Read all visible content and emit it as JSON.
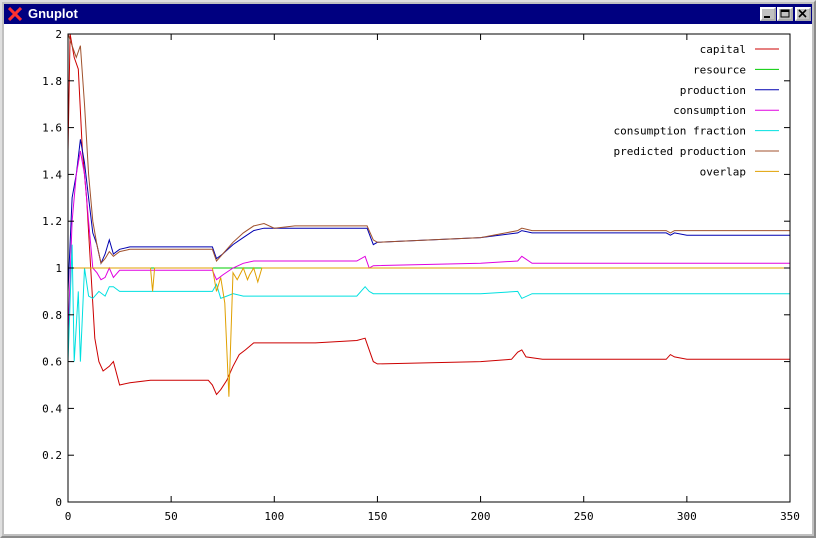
{
  "window": {
    "title": "Gnuplot",
    "icon": "x-logo-icon"
  },
  "colors": {
    "titlebar": "#000080",
    "plot_bg": "#ffffff",
    "axis": "#000000"
  },
  "chart_data": {
    "type": "line",
    "title": "",
    "xlabel": "",
    "ylabel": "",
    "xlim": [
      0,
      350
    ],
    "ylim": [
      0,
      2
    ],
    "xticks": [
      "0",
      "50",
      "100",
      "150",
      "200",
      "250",
      "300",
      "350"
    ],
    "yticks": [
      "0",
      "0.2",
      "0.4",
      "0.6",
      "0.8",
      "1",
      "1.2",
      "1.4",
      "1.6",
      "1.8",
      "2"
    ],
    "grid": false,
    "legend_position": "top-right",
    "series": [
      {
        "name": "capital",
        "color": "#cc0000",
        "points": [
          [
            0,
            1.5
          ],
          [
            1,
            2.0
          ],
          [
            3,
            1.9
          ],
          [
            5,
            1.85
          ],
          [
            7,
            1.5
          ],
          [
            9,
            1.3
          ],
          [
            11,
            1.0
          ],
          [
            13,
            0.7
          ],
          [
            15,
            0.6
          ],
          [
            17,
            0.56
          ],
          [
            20,
            0.58
          ],
          [
            22,
            0.6
          ],
          [
            25,
            0.5
          ],
          [
            30,
            0.51
          ],
          [
            40,
            0.52
          ],
          [
            55,
            0.52
          ],
          [
            68,
            0.52
          ],
          [
            70,
            0.5
          ],
          [
            72,
            0.46
          ],
          [
            74,
            0.48
          ],
          [
            77,
            0.52
          ],
          [
            80,
            0.58
          ],
          [
            83,
            0.63
          ],
          [
            86,
            0.65
          ],
          [
            90,
            0.68
          ],
          [
            100,
            0.68
          ],
          [
            120,
            0.68
          ],
          [
            140,
            0.69
          ],
          [
            144,
            0.7
          ],
          [
            146,
            0.65
          ],
          [
            148,
            0.6
          ],
          [
            150,
            0.59
          ],
          [
            200,
            0.6
          ],
          [
            215,
            0.61
          ],
          [
            218,
            0.64
          ],
          [
            220,
            0.65
          ],
          [
            222,
            0.62
          ],
          [
            230,
            0.61
          ],
          [
            290,
            0.61
          ],
          [
            292,
            0.63
          ],
          [
            294,
            0.62
          ],
          [
            300,
            0.61
          ],
          [
            350,
            0.61
          ]
        ]
      },
      {
        "name": "resource",
        "color": "#00cc00",
        "points": [
          [
            0,
            1.0
          ],
          [
            350,
            1.0
          ]
        ]
      },
      {
        "name": "production",
        "color": "#0000b0",
        "points": [
          [
            0,
            0.9
          ],
          [
            2,
            1.3
          ],
          [
            4,
            1.4
          ],
          [
            6,
            1.55
          ],
          [
            8,
            1.45
          ],
          [
            10,
            1.3
          ],
          [
            12,
            1.15
          ],
          [
            14,
            1.1
          ],
          [
            16,
            1.02
          ],
          [
            18,
            1.06
          ],
          [
            20,
            1.12
          ],
          [
            22,
            1.06
          ],
          [
            25,
            1.08
          ],
          [
            30,
            1.09
          ],
          [
            50,
            1.09
          ],
          [
            70,
            1.09
          ],
          [
            72,
            1.04
          ],
          [
            75,
            1.06
          ],
          [
            80,
            1.1
          ],
          [
            85,
            1.13
          ],
          [
            90,
            1.16
          ],
          [
            95,
            1.17
          ],
          [
            100,
            1.17
          ],
          [
            140,
            1.17
          ],
          [
            145,
            1.17
          ],
          [
            148,
            1.1
          ],
          [
            150,
            1.11
          ],
          [
            200,
            1.13
          ],
          [
            218,
            1.15
          ],
          [
            220,
            1.16
          ],
          [
            225,
            1.15
          ],
          [
            290,
            1.15
          ],
          [
            292,
            1.14
          ],
          [
            294,
            1.15
          ],
          [
            300,
            1.14
          ],
          [
            350,
            1.14
          ]
        ]
      },
      {
        "name": "consumption",
        "color": "#e000e0",
        "points": [
          [
            0,
            0.7
          ],
          [
            2,
            1.2
          ],
          [
            4,
            1.4
          ],
          [
            6,
            1.5
          ],
          [
            8,
            1.4
          ],
          [
            10,
            1.2
          ],
          [
            12,
            1.0
          ],
          [
            14,
            0.98
          ],
          [
            16,
            0.95
          ],
          [
            18,
            0.96
          ],
          [
            20,
            1.0
          ],
          [
            22,
            0.96
          ],
          [
            25,
            0.99
          ],
          [
            30,
            0.99
          ],
          [
            50,
            0.99
          ],
          [
            70,
            0.99
          ],
          [
            72,
            0.95
          ],
          [
            75,
            0.97
          ],
          [
            80,
            1.0
          ],
          [
            85,
            1.02
          ],
          [
            90,
            1.03
          ],
          [
            100,
            1.03
          ],
          [
            140,
            1.03
          ],
          [
            144,
            1.05
          ],
          [
            146,
            1.0
          ],
          [
            148,
            1.01
          ],
          [
            200,
            1.02
          ],
          [
            218,
            1.03
          ],
          [
            220,
            1.05
          ],
          [
            225,
            1.02
          ],
          [
            350,
            1.02
          ]
        ]
      },
      {
        "name": "consumption fraction",
        "color": "#00e0e0",
        "points": [
          [
            0,
            0.6
          ],
          [
            2,
            1.1
          ],
          [
            3,
            0.6
          ],
          [
            5,
            0.9
          ],
          [
            6,
            0.6
          ],
          [
            8,
            1.0
          ],
          [
            10,
            0.88
          ],
          [
            12,
            0.87
          ],
          [
            15,
            0.9
          ],
          [
            18,
            0.88
          ],
          [
            20,
            0.92
          ],
          [
            22,
            0.92
          ],
          [
            25,
            0.9
          ],
          [
            50,
            0.9
          ],
          [
            70,
            0.9
          ],
          [
            72,
            0.93
          ],
          [
            74,
            0.87
          ],
          [
            77,
            0.88
          ],
          [
            80,
            0.89
          ],
          [
            85,
            0.88
          ],
          [
            140,
            0.88
          ],
          [
            144,
            0.92
          ],
          [
            146,
            0.9
          ],
          [
            148,
            0.89
          ],
          [
            200,
            0.89
          ],
          [
            218,
            0.9
          ],
          [
            220,
            0.87
          ],
          [
            225,
            0.89
          ],
          [
            350,
            0.89
          ]
        ]
      },
      {
        "name": "predicted production",
        "color": "#a0522d",
        "points": [
          [
            0,
            2.0
          ],
          [
            2,
            1.95
          ],
          [
            4,
            1.9
          ],
          [
            6,
            1.95
          ],
          [
            8,
            1.7
          ],
          [
            10,
            1.4
          ],
          [
            12,
            1.2
          ],
          [
            14,
            1.1
          ],
          [
            16,
            1.02
          ],
          [
            18,
            1.04
          ],
          [
            20,
            1.07
          ],
          [
            22,
            1.05
          ],
          [
            25,
            1.07
          ],
          [
            30,
            1.08
          ],
          [
            50,
            1.08
          ],
          [
            70,
            1.08
          ],
          [
            72,
            1.03
          ],
          [
            75,
            1.06
          ],
          [
            80,
            1.11
          ],
          [
            85,
            1.15
          ],
          [
            90,
            1.18
          ],
          [
            95,
            1.19
          ],
          [
            100,
            1.17
          ],
          [
            110,
            1.18
          ],
          [
            140,
            1.18
          ],
          [
            145,
            1.18
          ],
          [
            148,
            1.12
          ],
          [
            150,
            1.11
          ],
          [
            200,
            1.13
          ],
          [
            218,
            1.16
          ],
          [
            220,
            1.17
          ],
          [
            225,
            1.16
          ],
          [
            290,
            1.16
          ],
          [
            292,
            1.15
          ],
          [
            294,
            1.16
          ],
          [
            300,
            1.16
          ],
          [
            350,
            1.16
          ]
        ]
      },
      {
        "name": "overlap",
        "color": "#e0a000",
        "points": [
          [
            0,
            1.0
          ],
          [
            40,
            1.0
          ],
          [
            41,
            0.9
          ],
          [
            42,
            1.0
          ],
          [
            70,
            1.0
          ],
          [
            72,
            0.9
          ],
          [
            74,
            0.96
          ],
          [
            76,
            0.85
          ],
          [
            78,
            0.45
          ],
          [
            80,
            0.98
          ],
          [
            82,
            0.95
          ],
          [
            85,
            1.0
          ],
          [
            87,
            0.95
          ],
          [
            88,
            0.97
          ],
          [
            90,
            1.0
          ],
          [
            92,
            0.94
          ],
          [
            94,
            1.0
          ],
          [
            100,
            1.0
          ],
          [
            350,
            1.0
          ]
        ]
      }
    ]
  }
}
